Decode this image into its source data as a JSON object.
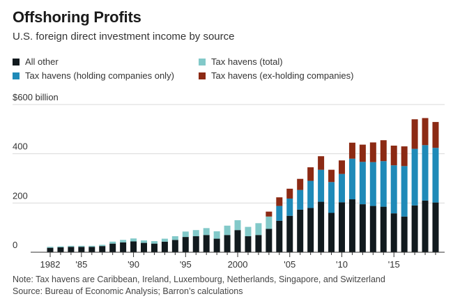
{
  "title": "Offshoring Profits",
  "subtitle": "U.S. foreign direct investment income by source",
  "notes": {
    "note": "Note: Tax havens are Caribbean, Ireland, Luxembourg, Netherlands, Singapore, and Switzerland",
    "source": "Source: Bureau of Economic Analysis; Barron’s calculations"
  },
  "colors": {
    "all_other": "#111a1e",
    "tax_havens_total": "#82c9c9",
    "holding": "#1f8ab8",
    "ex_holding": "#8c2a14",
    "grid": "#d9d9d9",
    "axis": "#333333"
  },
  "legend": [
    {
      "label": "All other",
      "color_key": "all_other"
    },
    {
      "label": "Tax havens (total)",
      "color_key": "tax_havens_total"
    },
    {
      "label": "Tax havens (holding companies only)",
      "color_key": "holding"
    },
    {
      "label": "Tax havens (ex-holding companies)",
      "color_key": "ex_holding"
    }
  ],
  "chart_data": {
    "type": "bar",
    "stacked": true,
    "ylim": [
      0,
      600
    ],
    "yticks": [
      0,
      200,
      400,
      600
    ],
    "ytick_labels": [
      "0",
      "200",
      "400",
      "$600 billion"
    ],
    "xtick_labels": {
      "1982": "1982",
      "1985": "'85",
      "1990": "'90",
      "1995": "'95",
      "2000": "2000",
      "2005": "'05",
      "2010": "'10",
      "2015": "'15"
    },
    "grid": true,
    "x": [
      1982,
      1983,
      1984,
      1985,
      1986,
      1987,
      1988,
      1989,
      1990,
      1991,
      1992,
      1993,
      1994,
      1995,
      1996,
      1997,
      1998,
      1999,
      2000,
      2001,
      2002,
      2003,
      2004,
      2005,
      2006,
      2007,
      2008,
      2009,
      2010,
      2011,
      2012,
      2013,
      2014,
      2015,
      2016,
      2017,
      2018,
      2019
    ],
    "series": [
      {
        "name": "All other",
        "color_key": "all_other",
        "values": [
          18,
          20,
          22,
          22,
          22,
          25,
          35,
          40,
          44,
          38,
          35,
          43,
          50,
          62,
          65,
          70,
          55,
          70,
          90,
          65,
          70,
          95,
          128,
          148,
          173,
          180,
          205,
          160,
          203,
          215,
          195,
          188,
          185,
          158,
          145,
          190,
          210,
          202
        ]
      },
      {
        "name": "Tax havens (total)",
        "color_key": "tax_havens_total",
        "values": [
          4,
          4,
          4,
          4,
          4,
          5,
          8,
          10,
          12,
          10,
          10,
          12,
          15,
          22,
          25,
          28,
          30,
          38,
          40,
          38,
          48,
          50,
          null,
          null,
          null,
          null,
          null,
          null,
          null,
          null,
          null,
          null,
          null,
          null,
          null,
          null,
          null,
          null
        ]
      },
      {
        "name": "Tax havens (holding companies only)",
        "color_key": "holding",
        "values": [
          null,
          null,
          null,
          null,
          null,
          null,
          null,
          null,
          null,
          null,
          null,
          null,
          null,
          null,
          null,
          null,
          null,
          null,
          null,
          null,
          null,
          null,
          60,
          70,
          80,
          110,
          130,
          125,
          115,
          165,
          172,
          178,
          185,
          195,
          205,
          230,
          225,
          222
        ]
      },
      {
        "name": "Tax havens (ex-holding companies)",
        "color_key": "ex_holding",
        "values": [
          null,
          null,
          null,
          null,
          null,
          null,
          null,
          null,
          null,
          null,
          null,
          null,
          null,
          null,
          null,
          null,
          null,
          null,
          null,
          null,
          null,
          20,
          35,
          40,
          45,
          55,
          55,
          50,
          55,
          65,
          70,
          80,
          85,
          80,
          80,
          120,
          110,
          105
        ]
      }
    ]
  }
}
